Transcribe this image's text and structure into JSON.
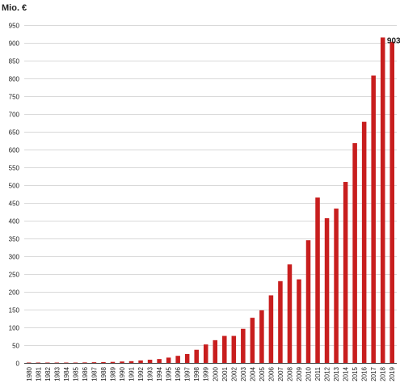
{
  "chart_data": {
    "type": "bar",
    "ylabel": "Mio. €",
    "ylim": [
      0,
      950
    ],
    "y_ticks": [
      0,
      50,
      100,
      150,
      200,
      250,
      300,
      350,
      400,
      450,
      500,
      550,
      600,
      650,
      700,
      750,
      800,
      850,
      900,
      950
    ],
    "grid": true,
    "categories": [
      "1980",
      "1981",
      "1982",
      "1983",
      "1984",
      "1985",
      "1986",
      "1987",
      "1988",
      "1989",
      "1990",
      "1991",
      "1992",
      "1993",
      "1994",
      "1995",
      "1996",
      "1997",
      "1998",
      "1999",
      "2000",
      "2001",
      "2002",
      "2003",
      "2004",
      "2005",
      "2006",
      "2007",
      "2008",
      "2009",
      "2010",
      "2011",
      "2012",
      "2013",
      "2014",
      "2015",
      "2016",
      "2017",
      "2018",
      "2019"
    ],
    "values": [
      0.5,
      0.5,
      0.5,
      0.5,
      1,
      1,
      1.5,
      2,
      2.5,
      3,
      4,
      5,
      7,
      9,
      11,
      15,
      20,
      25,
      37,
      52,
      64,
      76,
      76,
      96,
      127,
      148,
      190,
      230,
      277,
      235,
      345,
      465,
      407,
      434,
      509,
      618,
      678,
      808,
      915,
      903
    ],
    "annotations": [
      {
        "category": "2019",
        "text": "903"
      }
    ]
  },
  "colors": {
    "bar": "#c81e1e",
    "grid": "#d9d9d9",
    "axis": "#444444",
    "text": "#222222"
  }
}
